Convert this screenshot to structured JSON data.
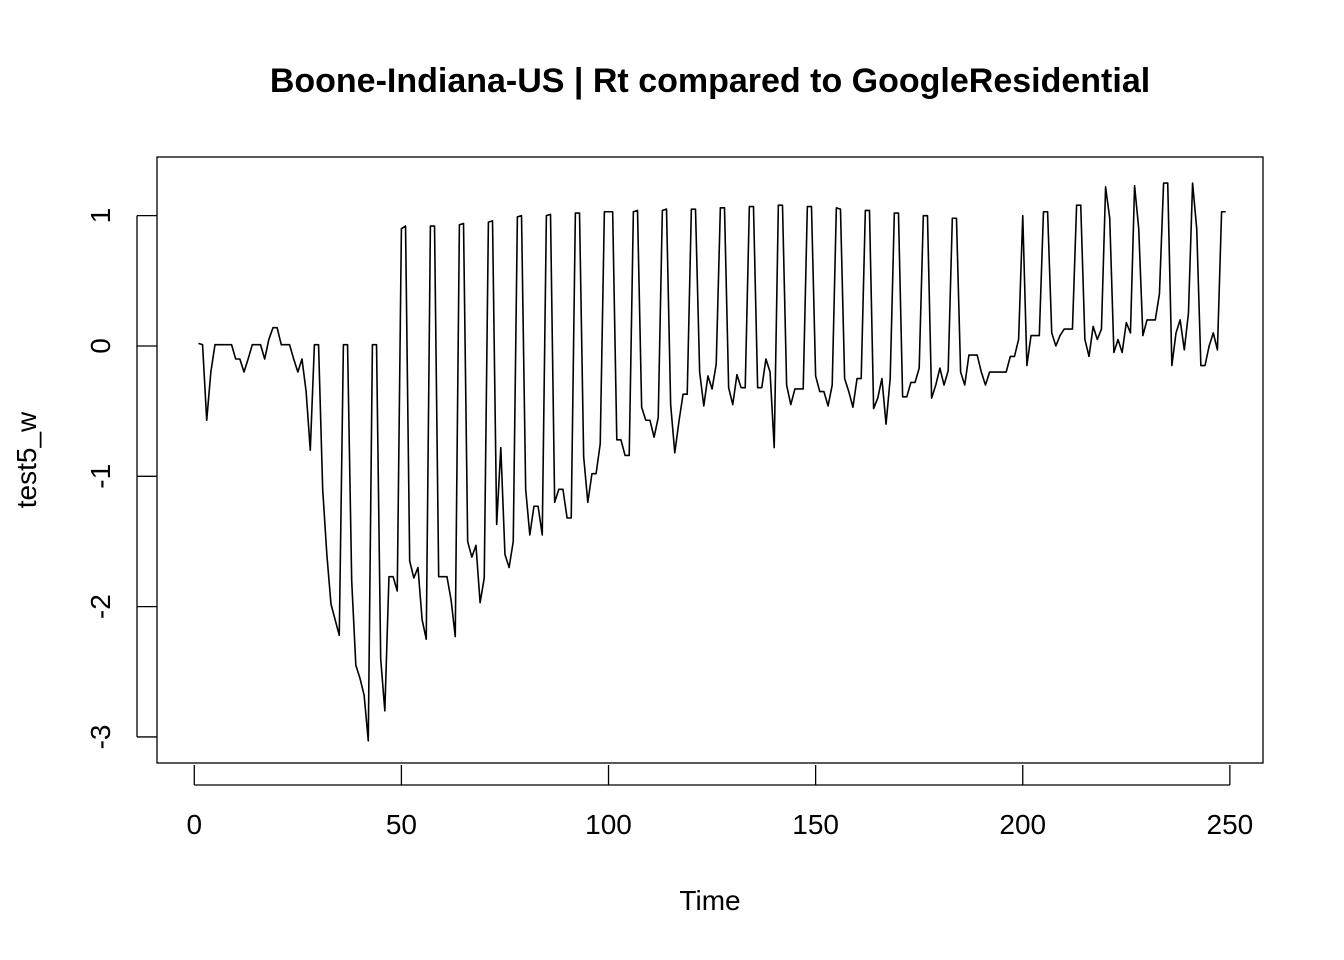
{
  "chart_data": {
    "type": "line",
    "title": "Boone-Indiana-US | Rt compared to GoogleResidential",
    "xlabel": "Time",
    "ylabel": "test5_w",
    "xlim": [
      -9,
      258
    ],
    "ylim": [
      -3.2,
      1.45
    ],
    "x_ticks": [
      0,
      50,
      100,
      150,
      200,
      250
    ],
    "x_tick_labels": [
      "0",
      "50",
      "100",
      "150",
      "200",
      "250"
    ],
    "y_ticks": [
      -3,
      -2,
      -1,
      0,
      1
    ],
    "y_tick_labels": [
      "-3",
      "-2",
      "-1",
      "0",
      "1"
    ],
    "grid": false,
    "legend": "none",
    "series": [
      {
        "x_start": 1,
        "x_step": 1,
        "values": [
          0.02,
          0.01,
          -0.57,
          -0.2,
          0.01,
          0.01,
          0.01,
          0.01,
          0.01,
          -0.1,
          -0.1,
          -0.2,
          -0.1,
          0.01,
          0.01,
          0.01,
          -0.1,
          0.05,
          0.14,
          0.14,
          0.01,
          0.01,
          0.01,
          -0.1,
          -0.2,
          -0.1,
          -0.35,
          -0.8,
          0.01,
          0.01,
          -1.1,
          -1.6,
          -1.98,
          -2.1,
          -2.22,
          0.01,
          0.01,
          -1.8,
          -2.45,
          -2.55,
          -2.68,
          -3.03,
          0.01,
          0.01,
          -2.4,
          -2.8,
          -1.77,
          -1.77,
          -1.88,
          0.9,
          0.92,
          -1.65,
          -1.78,
          -1.7,
          -2.1,
          -2.25,
          0.92,
          0.92,
          -1.77,
          -1.77,
          -1.77,
          -1.95,
          -2.23,
          0.93,
          0.94,
          -1.5,
          -1.62,
          -1.53,
          -1.97,
          -1.78,
          0.95,
          0.96,
          -1.37,
          -0.78,
          -1.6,
          -1.7,
          -1.5,
          0.99,
          1.0,
          -1.1,
          -1.45,
          -1.23,
          -1.23,
          -1.45,
          1.0,
          1.01,
          -1.2,
          -1.1,
          -1.1,
          -1.32,
          -1.32,
          1.02,
          1.02,
          -0.85,
          -1.2,
          -0.98,
          -0.98,
          -0.75,
          1.03,
          1.03,
          1.03,
          -0.72,
          -0.72,
          -0.84,
          -0.84,
          1.03,
          1.04,
          -0.47,
          -0.57,
          -0.57,
          -0.7,
          -0.55,
          1.04,
          1.05,
          -0.45,
          -0.82,
          -0.58,
          -0.37,
          -0.37,
          1.05,
          1.05,
          -0.2,
          -0.46,
          -0.23,
          -0.33,
          -0.14,
          1.06,
          1.06,
          -0.32,
          -0.45,
          -0.22,
          -0.32,
          -0.32,
          1.07,
          1.07,
          -0.32,
          -0.32,
          -0.1,
          -0.2,
          -0.78,
          1.08,
          1.08,
          -0.3,
          -0.45,
          -0.33,
          -0.33,
          -0.33,
          1.07,
          1.07,
          -0.23,
          -0.35,
          -0.35,
          -0.46,
          -0.3,
          1.06,
          1.05,
          -0.25,
          -0.35,
          -0.47,
          -0.25,
          -0.25,
          1.04,
          1.04,
          -0.48,
          -0.4,
          -0.25,
          -0.6,
          -0.25,
          1.02,
          1.02,
          -0.39,
          -0.39,
          -0.28,
          -0.28,
          -0.17,
          1.0,
          1.0,
          -0.4,
          -0.3,
          -0.17,
          -0.3,
          -0.19,
          0.98,
          0.98,
          -0.2,
          -0.3,
          -0.07,
          -0.07,
          -0.07,
          -0.2,
          -0.3,
          -0.2,
          -0.2,
          -0.2,
          -0.2,
          -0.2,
          -0.08,
          -0.08,
          0.05,
          1.0,
          -0.15,
          0.08,
          0.08,
          0.08,
          1.03,
          1.03,
          0.1,
          0.0,
          0.08,
          0.13,
          0.13,
          0.13,
          1.08,
          1.08,
          0.05,
          -0.08,
          0.15,
          0.05,
          0.13,
          1.22,
          0.98,
          -0.05,
          0.05,
          -0.05,
          0.18,
          0.1,
          1.23,
          0.9,
          0.08,
          0.2,
          0.2,
          0.2,
          0.4,
          1.25,
          1.25,
          -0.15,
          0.1,
          0.2,
          -0.03,
          0.25,
          1.25,
          0.9,
          -0.15,
          -0.15,
          0.0,
          0.1,
          -0.03,
          1.03,
          1.03
        ]
      }
    ]
  }
}
